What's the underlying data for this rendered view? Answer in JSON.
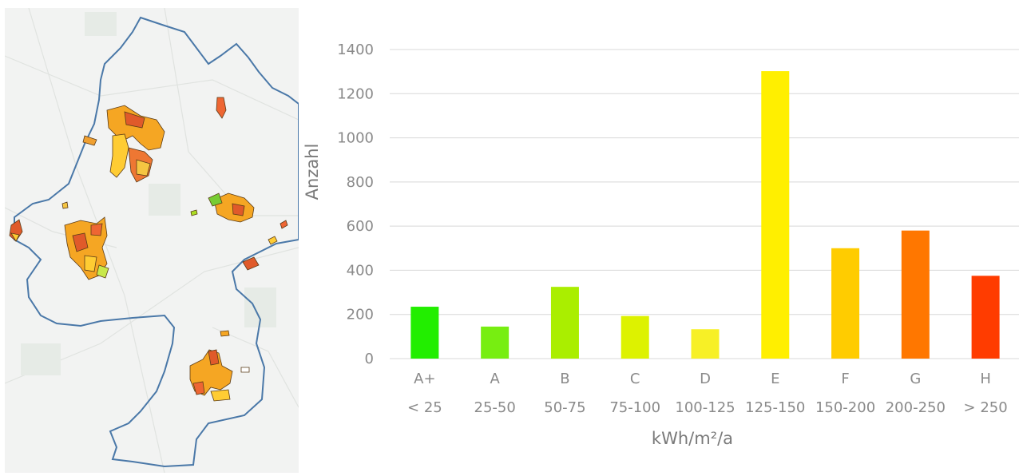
{
  "map": {
    "boundary_color": "#4a78a8",
    "background_color": "#f2f3f2",
    "icon": "municipality-map"
  },
  "chart_data": {
    "type": "bar",
    "title": "",
    "xlabel": "kWh/m²/a",
    "ylabel": "Anzahl",
    "ylim": [
      0,
      1400
    ],
    "yticks": [
      0,
      200,
      400,
      600,
      800,
      1000,
      1200,
      1400
    ],
    "grid": true,
    "legend": "none",
    "categories": [
      "A+",
      "A",
      "B",
      "C",
      "D",
      "E",
      "F",
      "G",
      "H"
    ],
    "ranges": [
      "< 25",
      "25-50",
      "50-75",
      "75-100",
      "100-125",
      "125-150",
      "150-200",
      "200-250",
      "> 250"
    ],
    "values": [
      235,
      145,
      325,
      193,
      133,
      1302,
      500,
      580,
      375
    ],
    "colors": [
      "#22ee00",
      "#77ee11",
      "#aaee00",
      "#ddf200",
      "#f7f026",
      "#ffef00",
      "#ffcc00",
      "#ff7700",
      "#ff3c00"
    ]
  }
}
